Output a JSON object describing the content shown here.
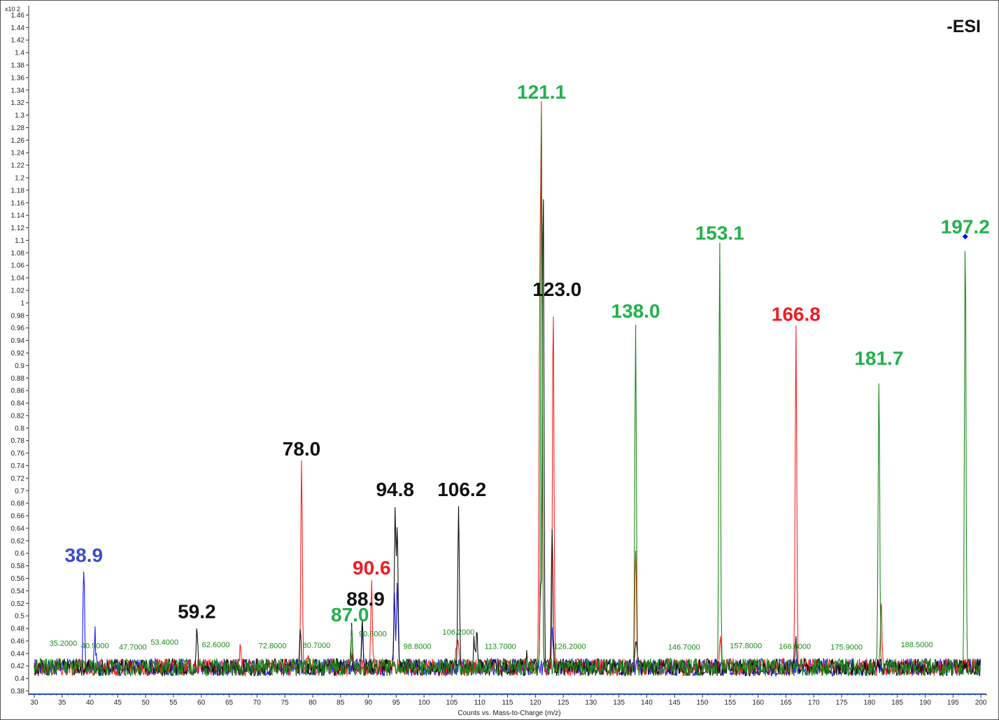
{
  "chart_data": {
    "type": "line",
    "mode_label": "-ESI",
    "y_multiplier": "x10 2",
    "xlabel": "Counts vs. Mass-to-Charge (m/z)",
    "ylabel": "",
    "xlim": [
      29,
      201
    ],
    "ylim": [
      0.375,
      1.475
    ],
    "x_ticks": [
      30,
      35,
      40,
      45,
      50,
      55,
      60,
      65,
      70,
      75,
      80,
      85,
      90,
      95,
      100,
      105,
      110,
      115,
      120,
      125,
      130,
      135,
      140,
      145,
      150,
      155,
      160,
      165,
      170,
      175,
      180,
      185,
      190,
      195,
      200
    ],
    "y_ticks": [
      "0.38",
      "0.4",
      "0.42",
      "0.44",
      "0.46",
      "0.48",
      "0.5",
      "0.52",
      "0.54",
      "0.56",
      "0.58",
      "0.6",
      "0.62",
      "0.64",
      "0.66",
      "0.68",
      "0.7",
      "0.72",
      "0.74",
      "0.76",
      "0.78",
      "0.8",
      "0.82",
      "0.84",
      "0.86",
      "0.88",
      "0.9",
      "0.92",
      "0.94",
      "0.96",
      "0.98",
      "1",
      "1.02",
      "1.04",
      "1.06",
      "1.08",
      "1.1",
      "1.12",
      "1.14",
      "1.16",
      "1.18",
      "1.2",
      "1.22",
      "1.24",
      "1.26",
      "1.28",
      "1.3",
      "1.32",
      "1.34",
      "1.36",
      "1.38",
      "1.4",
      "1.42",
      "1.44",
      "1.46"
    ],
    "grid": false,
    "colors": {
      "blue": "#1a1aff",
      "red": "#ff2020",
      "green": "#1a8a1a",
      "black": "#111111",
      "label_blue": "#3c4bcc",
      "label_red": "#ee1c24",
      "label_green": "#22b14c",
      "label_black": "#111111",
      "small_label": "#1a8a1a",
      "marker": "#0000ff"
    },
    "series": [
      {
        "color": "blue",
        "baseline": 0.418,
        "peaks": [
          [
            38.9,
            0.575
          ],
          [
            40.9,
            0.47
          ],
          [
            88.9,
            0.48
          ],
          [
            94.7,
            0.54
          ],
          [
            95.2,
            0.555
          ],
          [
            123.0,
            0.495
          ]
        ]
      },
      {
        "color": "red",
        "baseline": 0.418,
        "peaks": [
          [
            67.0,
            0.45
          ],
          [
            78.0,
            0.745
          ],
          [
            79.2,
            0.44
          ],
          [
            87.0,
            0.44
          ],
          [
            90.6,
            0.555
          ],
          [
            105.8,
            0.46
          ],
          [
            106.2,
            0.465
          ],
          [
            120.8,
            0.97
          ],
          [
            121.1,
            1.25
          ],
          [
            123.2,
            1.0
          ],
          [
            138.0,
            0.605
          ],
          [
            153.2,
            0.46
          ],
          [
            166.8,
            0.96
          ],
          [
            182.1,
            0.515
          ]
        ]
      },
      {
        "color": "green",
        "baseline": 0.418,
        "peaks": [
          [
            87.0,
            0.48
          ],
          [
            121.1,
            1.315
          ],
          [
            138.0,
            0.965
          ],
          [
            153.1,
            1.09
          ],
          [
            181.7,
            0.89
          ],
          [
            197.2,
            1.1
          ]
        ]
      },
      {
        "color": "black",
        "baseline": 0.418,
        "peaks": [
          [
            59.2,
            0.485
          ],
          [
            77.8,
            0.485
          ],
          [
            87.0,
            0.48
          ],
          [
            88.9,
            0.505
          ],
          [
            94.8,
            0.68
          ],
          [
            95.2,
            0.635
          ],
          [
            106.2,
            0.68
          ],
          [
            109.0,
            0.465
          ],
          [
            109.5,
            0.465
          ],
          [
            118.5,
            0.44
          ],
          [
            121.0,
            0.47
          ],
          [
            120.9,
            0.5
          ],
          [
            121.4,
            1.2
          ],
          [
            123.0,
            0.65
          ],
          [
            138.1,
            0.47
          ],
          [
            166.8,
            0.47
          ]
        ]
      }
    ],
    "peak_labels": [
      {
        "text": "38.9",
        "x": 38.9,
        "y": 0.575,
        "color": "label_blue"
      },
      {
        "text": "59.2",
        "x": 59.2,
        "y": 0.485,
        "color": "label_black"
      },
      {
        "text": "78.0",
        "x": 78.0,
        "y": 0.745,
        "color": "label_black"
      },
      {
        "text": "87.0",
        "x": 86.7,
        "y": 0.48,
        "color": "label_green"
      },
      {
        "text": "88.9",
        "x": 89.5,
        "y": 0.505,
        "color": "label_black"
      },
      {
        "text": "90.6",
        "x": 90.6,
        "y": 0.555,
        "color": "label_red"
      },
      {
        "text": "94.8",
        "x": 94.8,
        "y": 0.68,
        "color": "label_black"
      },
      {
        "text": "106.2",
        "x": 106.8,
        "y": 0.68,
        "color": "label_black"
      },
      {
        "text": "121.1",
        "x": 121.1,
        "y": 1.315,
        "color": "label_green"
      },
      {
        "text": "123.0",
        "x": 123.9,
        "y": 1.0,
        "color": "label_black"
      },
      {
        "text": "138.0",
        "x": 138.0,
        "y": 0.965,
        "color": "label_green"
      },
      {
        "text": "153.1",
        "x": 153.1,
        "y": 1.09,
        "color": "label_green"
      },
      {
        "text": "166.8",
        "x": 166.8,
        "y": 0.96,
        "color": "label_red"
      },
      {
        "text": "181.7",
        "x": 181.7,
        "y": 0.89,
        "color": "label_green"
      },
      {
        "text": "197.2",
        "x": 197.2,
        "y": 1.1,
        "color": "label_green"
      }
    ],
    "small_labels": [
      {
        "text": "35.2000",
        "x": 35.2,
        "y": 0.452
      },
      {
        "text": "40.9000",
        "x": 40.9,
        "y": 0.448
      },
      {
        "text": "47.7000",
        "x": 47.7,
        "y": 0.446
      },
      {
        "text": "53.4000",
        "x": 53.4,
        "y": 0.454
      },
      {
        "text": "62.6000",
        "x": 62.6,
        "y": 0.45
      },
      {
        "text": "72.8000",
        "x": 72.8,
        "y": 0.448
      },
      {
        "text": "80.7000",
        "x": 80.7,
        "y": 0.449
      },
      {
        "text": "90.8000",
        "x": 90.8,
        "y": 0.467
      },
      {
        "text": "98.8000",
        "x": 98.8,
        "y": 0.447
      },
      {
        "text": "106.2000",
        "x": 106.2,
        "y": 0.47
      },
      {
        "text": "113.7000",
        "x": 113.7,
        "y": 0.447
      },
      {
        "text": "126.2000",
        "x": 126.2,
        "y": 0.447
      },
      {
        "text": "146.7000",
        "x": 146.7,
        "y": 0.446
      },
      {
        "text": "157.8000",
        "x": 157.8,
        "y": 0.448
      },
      {
        "text": "166.6000",
        "x": 166.6,
        "y": 0.447
      },
      {
        "text": "175.9000",
        "x": 175.9,
        "y": 0.446
      },
      {
        "text": "188.5000",
        "x": 188.5,
        "y": 0.45
      }
    ],
    "marker": {
      "x": 197.2,
      "y": 1.106,
      "color": "marker"
    }
  }
}
